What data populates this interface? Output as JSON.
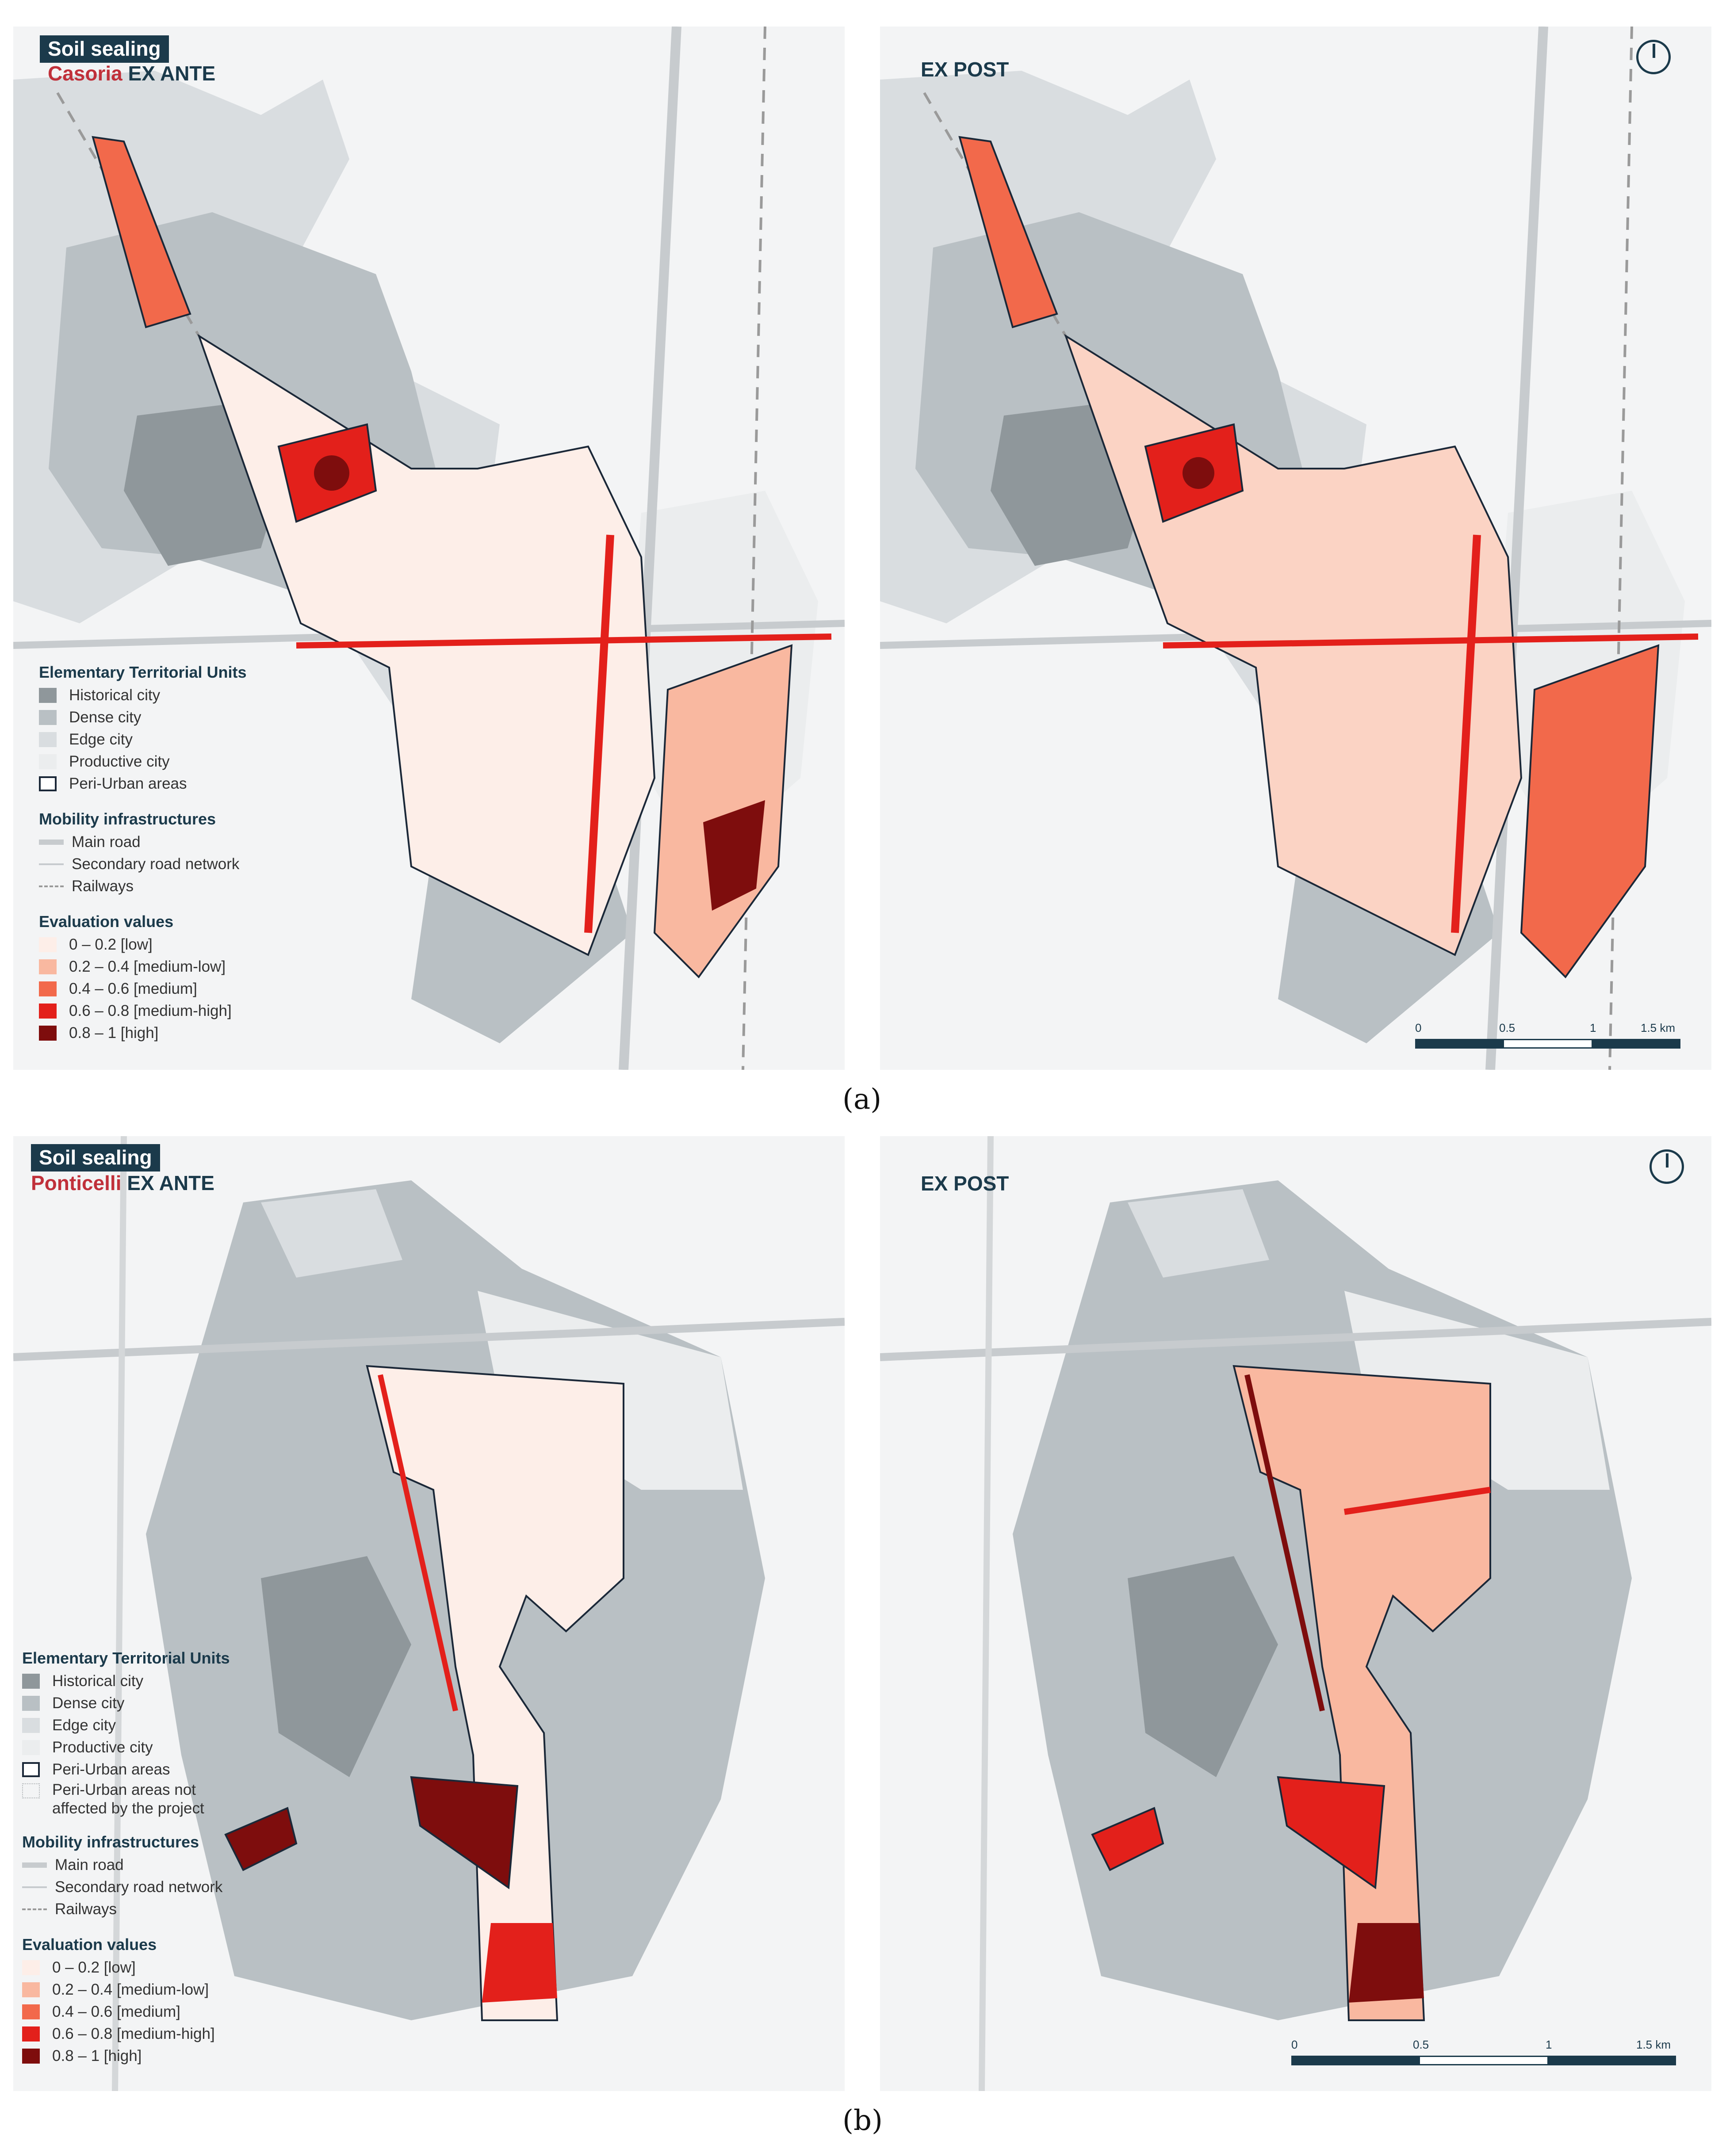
{
  "colors": {
    "low": "#fdeee8",
    "medium_low": "#f9b8a0",
    "medium": "#f2694b",
    "medium_high": "#e3201b",
    "high": "#7e0d0d",
    "historical_city": "#8f979b",
    "dense_city": "#b9c0c4",
    "edge_city": "#d9dde0",
    "productive_city": "#ebedee",
    "peri_urban_outline": "#1b2838",
    "title_bg": "#1b3a4b",
    "place_name": "#c0303a"
  },
  "figure_a": {
    "caption": "(a)",
    "left": {
      "tag": "Soil sealing",
      "place": "Casoria",
      "phase": "EX ANTE"
    },
    "right": {
      "phase": "EX POST",
      "north_arrow_icon": "north-arrow-icon",
      "scale": {
        "ticks": [
          "0",
          "0.5",
          "1",
          "1.5 km"
        ]
      }
    },
    "legend": {
      "etu_title": "Elementary Territorial Units",
      "etu_items": [
        "Historical city",
        "Dense city",
        "Edge city",
        "Productive city",
        "Peri-Urban areas"
      ],
      "mobility_title": "Mobility infrastructures",
      "mobility_items": [
        "Main road",
        "Secondary road network",
        "Railways"
      ],
      "eval_title": "Evaluation values",
      "eval_items": [
        "0 – 0.2 [low]",
        "0.2 – 0.4 [medium-low]",
        "0.4 – 0.6 [medium]",
        "0.6 – 0.8 [medium-high]",
        "0.8 – 1 [high]"
      ]
    }
  },
  "figure_b": {
    "caption": "(b)",
    "left": {
      "tag": "Soil sealing",
      "place": "Ponticelli",
      "phase": "EX ANTE"
    },
    "right": {
      "phase": "EX POST",
      "north_arrow_icon": "north-arrow-icon",
      "scale": {
        "ticks": [
          "0",
          "0.5",
          "1",
          "1.5 km"
        ]
      }
    },
    "legend": {
      "etu_title": "Elementary Territorial Units",
      "etu_items": [
        "Historical city",
        "Dense city",
        "Edge city",
        "Productive city",
        "Peri-Urban areas",
        "Peri-Urban areas not affected by the project"
      ],
      "mobility_title": "Mobility infrastructures",
      "mobility_items": [
        "Main road",
        "Secondary road network",
        "Railways"
      ],
      "eval_title": "Evaluation values",
      "eval_items": [
        "0 – 0.2 [low]",
        "0.2 – 0.4 [medium-low]",
        "0.4 – 0.6 [medium]",
        "0.6 – 0.8 [medium-high]",
        "0.8 – 1 [high]"
      ]
    }
  }
}
